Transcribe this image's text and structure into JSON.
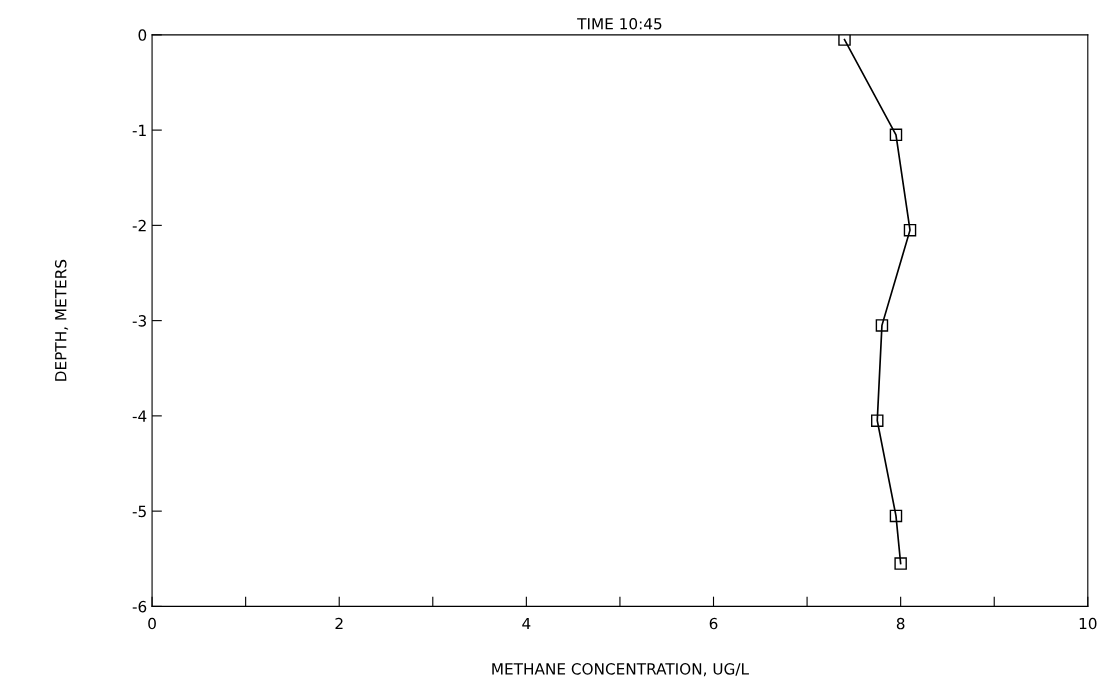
{
  "chart_data": {
    "type": "line",
    "title": "TIME 10:45",
    "xlabel": "METHANE CONCENTRATION, UG/L",
    "ylabel": "DEPTH, METERS",
    "x": [
      7.4,
      7.95,
      8.1,
      7.8,
      7.75,
      7.95,
      8.0
    ],
    "series": [
      {
        "color": "#000000",
        "values": [
          -0.05,
          -1.05,
          -2.05,
          -3.05,
          -4.05,
          -5.05,
          -5.55
        ]
      }
    ],
    "marker": "square",
    "line_style": "solid",
    "grid": false,
    "legend": false,
    "xlim": [
      0,
      10
    ],
    "ylim": [
      -6,
      0
    ],
    "xticks": [
      0,
      {
        "value": 1,
        "label": null
      },
      2,
      {
        "value": 3,
        "label": null
      },
      4,
      {
        "value": 5,
        "label": null
      },
      6,
      {
        "value": 7,
        "label": null
      },
      8,
      {
        "value": 9,
        "label": null
      },
      10
    ],
    "yticks": [
      -6,
      -5,
      -4,
      -3,
      -2,
      -1,
      0
    ]
  }
}
